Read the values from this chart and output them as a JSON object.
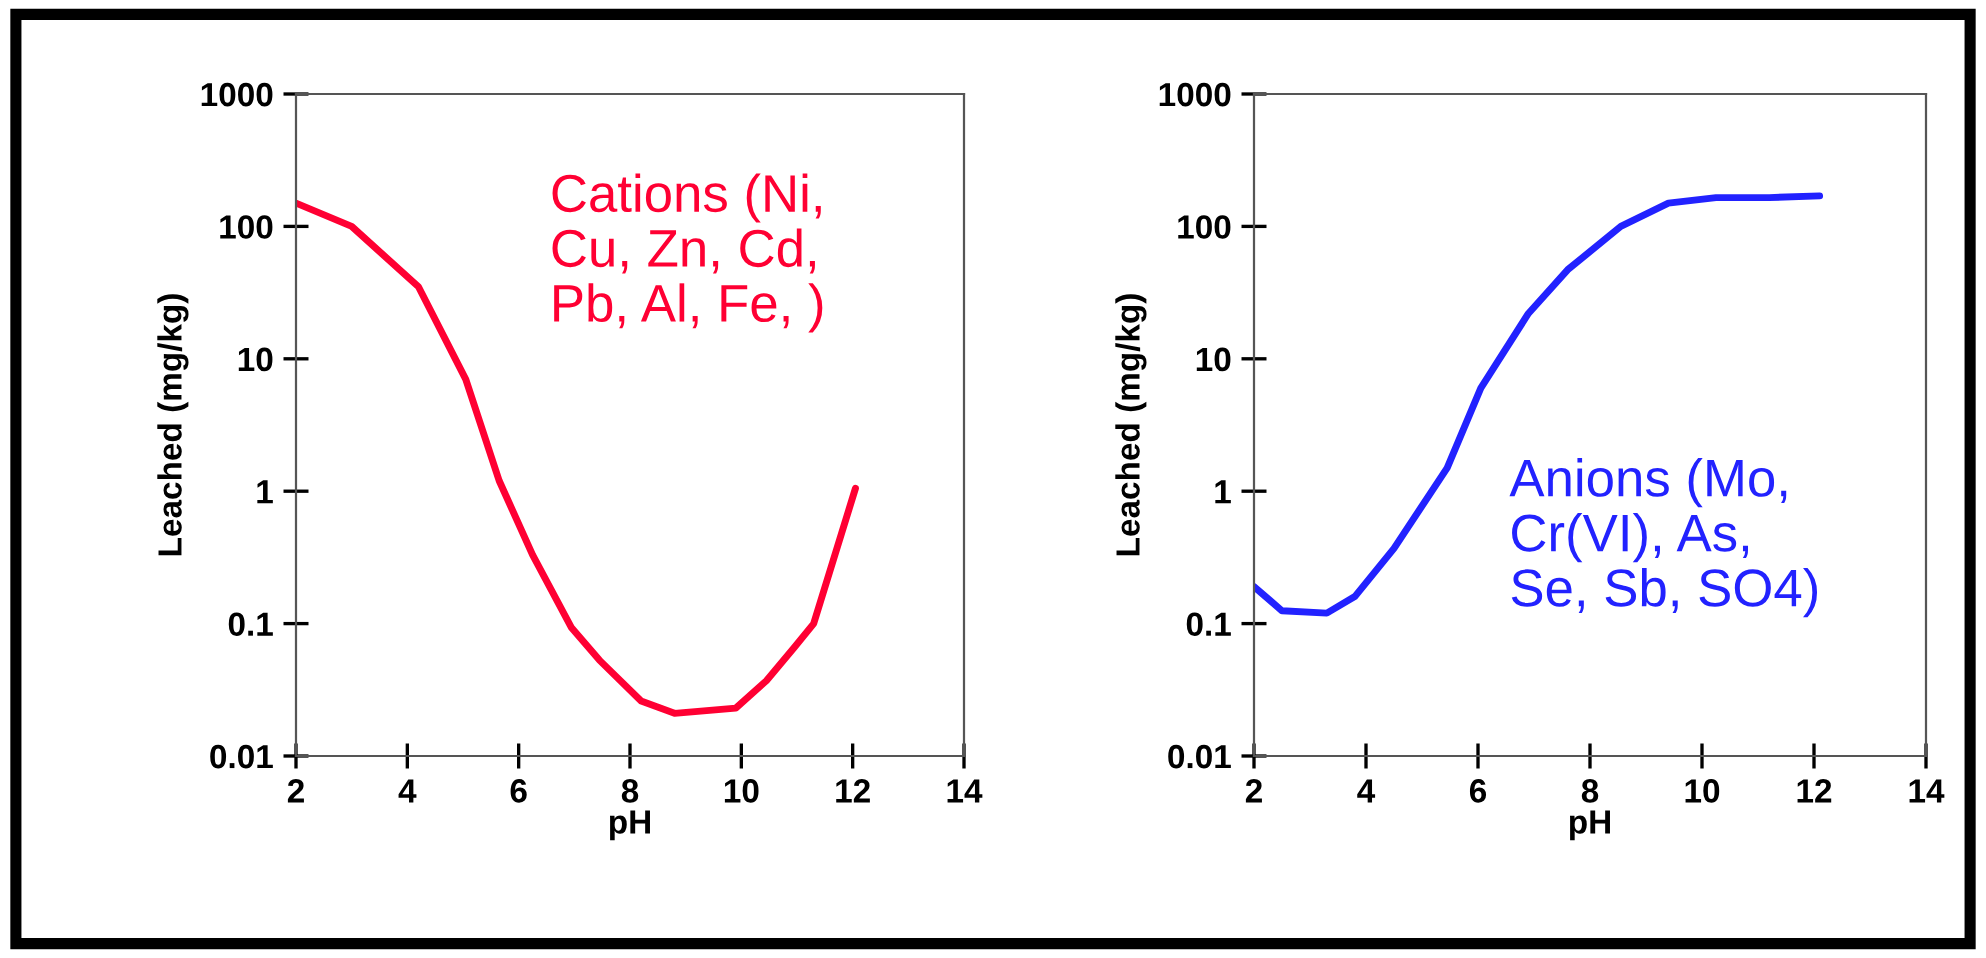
{
  "chart_data": [
    {
      "type": "line",
      "xlabel": "pH",
      "ylabel": "Leached (mg/kg)",
      "log": "y",
      "xlim": [
        2,
        14
      ],
      "xticks": [
        2,
        4,
        6,
        8,
        10,
        12,
        14
      ],
      "ylim": [
        0.01,
        1000
      ],
      "yticks": [
        0.01,
        0.1,
        1,
        10,
        100,
        1000
      ],
      "grid": false,
      "legend": false,
      "series": [
        {
          "name": "Cations (Ni,\nCu, Zn, Cd,\nPb, Al, Fe, )",
          "color": "#ff0033",
          "x": [
            2,
            3.0,
            4.2,
            5.05,
            5.65,
            6.25,
            6.95,
            7.45,
            8.2,
            8.8,
            9.9,
            10.45,
            10.95,
            11.3,
            12.05
          ],
          "values": [
            150,
            100,
            35,
            7,
            1.2,
            0.33,
            0.093,
            0.053,
            0.026,
            0.021,
            0.023,
            0.037,
            0.066,
            0.1,
            1.05
          ]
        }
      ]
    },
    {
      "type": "line",
      "xlabel": "pH",
      "ylabel": "Leached (mg/kg)",
      "log": "y",
      "xlim": [
        2,
        14
      ],
      "xticks": [
        2,
        4,
        6,
        8,
        10,
        12,
        14
      ],
      "ylim": [
        0.01,
        1000
      ],
      "yticks": [
        0.01,
        0.1,
        1,
        10,
        100,
        1000
      ],
      "grid": false,
      "legend": false,
      "series": [
        {
          "name": "Anions (Mo,\nCr(VI), As,\nSe, Sb, SO4)",
          "color": "#2222ff",
          "x": [
            2,
            2.5,
            3.3,
            3.8,
            4.5,
            5.45,
            6.05,
            6.9,
            7.6,
            8.55,
            9.4,
            10.25,
            11.2,
            12.1
          ],
          "values": [
            0.19,
            0.125,
            0.12,
            0.16,
            0.37,
            1.5,
            6,
            22,
            47,
            100,
            150,
            165,
            165,
            170
          ]
        }
      ]
    }
  ]
}
